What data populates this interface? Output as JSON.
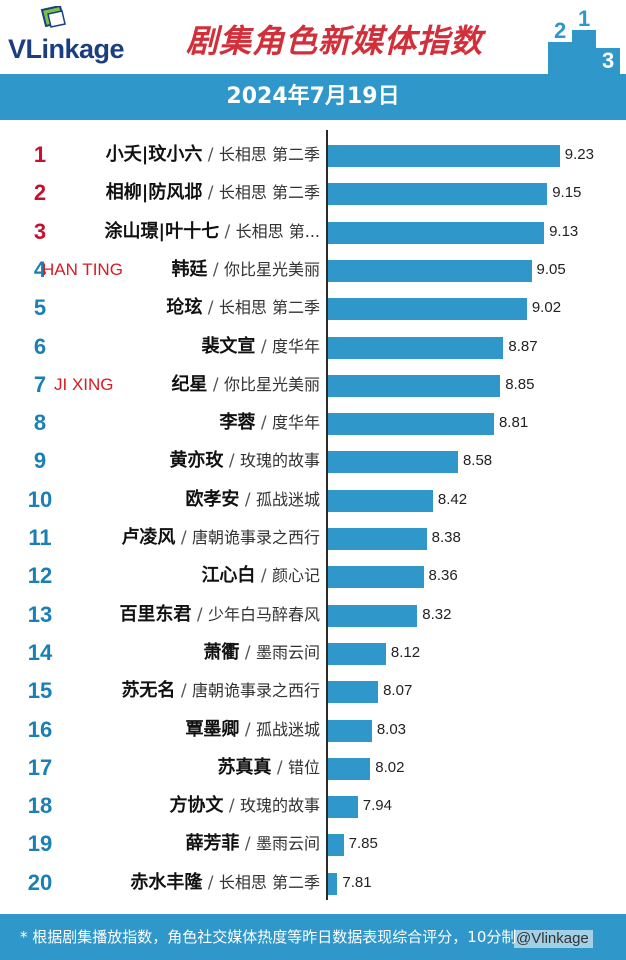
{
  "header": {
    "logo_text": "VLinkage",
    "title": "剧集角色新媒体指数",
    "podium_digits": [
      "2",
      "1",
      "3"
    ],
    "date": "2024年7月19日"
  },
  "colors": {
    "bar": "#2f97c9",
    "rank_top": "#c8102e",
    "rank_other": "#1a7fb5",
    "title": "#d32f3a",
    "overlay": "#d81b21"
  },
  "chart_data": {
    "type": "bar",
    "orientation": "horizontal",
    "title": "剧集角色新媒体指数",
    "subtitle": "2024年7月19日",
    "categories": [
      "小夭|玟小六 / 长相思 第二季",
      "相柳|防风邶 / 长相思 第二季",
      "涂山璟|叶十七 / 长相思 第...",
      "韩廷 / 你比星光美丽",
      "玱玹 / 长相思 第二季",
      "裴文宣 / 度华年",
      "纪星 / 你比星光美丽",
      "李蓉 / 度华年",
      "黄亦玫 / 玫瑰的故事",
      "欧孝安 / 孤战迷城",
      "卢凌风 / 唐朝诡事录之西行",
      "江心白 / 颜心记",
      "百里东君 / 少年白马醉春风",
      "萧衢 / 墨雨云间",
      "苏无名 / 唐朝诡事录之西行",
      "覃墨卿 / 孤战迷城",
      "苏真真 / 错位",
      "方协文 / 玫瑰的故事",
      "薛芳菲 / 墨雨云间",
      "赤水丰隆 / 长相思 第二季"
    ],
    "values": [
      9.23,
      9.15,
      9.13,
      9.05,
      9.02,
      8.87,
      8.85,
      8.81,
      8.58,
      8.42,
      8.38,
      8.36,
      8.32,
      8.12,
      8.07,
      8.03,
      8.02,
      7.94,
      7.85,
      7.81
    ],
    "xlim": [
      7.75,
      9.27
    ],
    "grid": false,
    "legend": "none"
  },
  "rows": [
    {
      "rank": "1",
      "name": "小夭|玟小六",
      "show": "长相思 第二季",
      "overlay": ""
    },
    {
      "rank": "2",
      "name": "相柳|防风邶",
      "show": "长相思 第二季",
      "overlay": ""
    },
    {
      "rank": "3",
      "name": "涂山璟|叶十七",
      "show": "长相思 第...",
      "overlay": ""
    },
    {
      "rank": "4",
      "name": "韩廷",
      "show": "你比星光美丽",
      "overlay": "HAN TING"
    },
    {
      "rank": "5",
      "name": "玱玹",
      "show": "长相思 第二季",
      "overlay": ""
    },
    {
      "rank": "6",
      "name": "裴文宣",
      "show": "度华年",
      "overlay": ""
    },
    {
      "rank": "7",
      "name": "纪星",
      "show": "你比星光美丽",
      "overlay": "JI XING"
    },
    {
      "rank": "8",
      "name": "李蓉",
      "show": "度华年",
      "overlay": ""
    },
    {
      "rank": "9",
      "name": "黄亦玫",
      "show": "玫瑰的故事",
      "overlay": ""
    },
    {
      "rank": "10",
      "name": "欧孝安",
      "show": "孤战迷城",
      "overlay": ""
    },
    {
      "rank": "11",
      "name": "卢凌风",
      "show": "唐朝诡事录之西行",
      "overlay": ""
    },
    {
      "rank": "12",
      "name": "江心白",
      "show": "颜心记",
      "overlay": ""
    },
    {
      "rank": "13",
      "name": "百里东君",
      "show": "少年白马醉春风",
      "overlay": ""
    },
    {
      "rank": "14",
      "name": "萧衢",
      "show": "墨雨云间",
      "overlay": ""
    },
    {
      "rank": "15",
      "name": "苏无名",
      "show": "唐朝诡事录之西行",
      "overlay": ""
    },
    {
      "rank": "16",
      "name": "覃墨卿",
      "show": "孤战迷城",
      "overlay": ""
    },
    {
      "rank": "17",
      "name": "苏真真",
      "show": "错位",
      "overlay": ""
    },
    {
      "rank": "18",
      "name": "方协文",
      "show": "玫瑰的故事",
      "overlay": ""
    },
    {
      "rank": "19",
      "name": "薛芳菲",
      "show": "墨雨云间",
      "overlay": ""
    },
    {
      "rank": "20",
      "name": "赤水丰隆",
      "show": "长相思 第二季",
      "overlay": ""
    }
  ],
  "footer": {
    "note": "* 根据剧集播放指数，角色社交媒体热度等昨日数据表现综合评分，10分制",
    "watermark": "@Vlinkage"
  }
}
